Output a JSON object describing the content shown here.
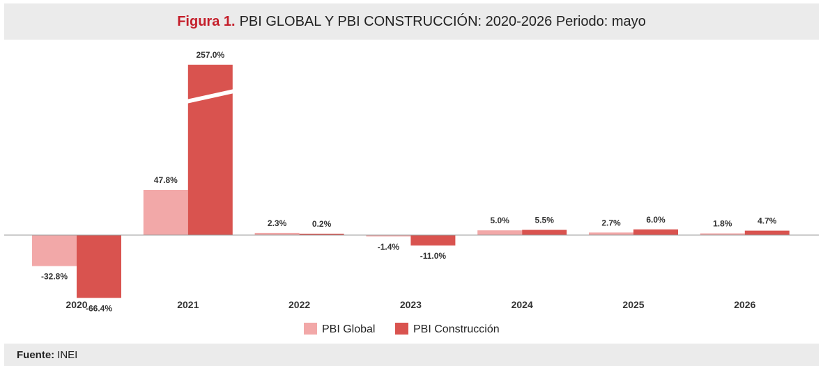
{
  "figure": {
    "label": "Figura 1.",
    "title": "PBI GLOBAL Y PBI CONSTRUCCIÓN: 2020-2026 Periodo: mayo"
  },
  "source": {
    "label": "Fuente:",
    "value": "INEI"
  },
  "colors": {
    "pbi_global": "#f2a8a8",
    "pbi_construccion": "#d9534f",
    "axis": "#9a9a9a",
    "band": "#ebebeb"
  },
  "chart_data": {
    "type": "bar",
    "categories": [
      "2020",
      "2021",
      "2022",
      "2023",
      "2024",
      "2025",
      "2026"
    ],
    "series": [
      {
        "name": "PBI Global",
        "values": [
          -32.8,
          47.8,
          2.3,
          -1.4,
          5.0,
          2.7,
          1.8
        ],
        "labels": [
          "-32.8%",
          "47.8%",
          "2.3%",
          "-1.4%",
          "5.0%",
          "2.7%",
          "1.8%"
        ],
        "color": "#f2a8a8"
      },
      {
        "name": "PBI Construcción",
        "values": [
          -66.4,
          257.0,
          0.2,
          -11.0,
          5.5,
          6.0,
          4.7
        ],
        "labels": [
          "-66.4%",
          "257.0%",
          "0.2%",
          "-11.0%",
          "5.5%",
          "6.0%",
          "4.7%"
        ],
        "color": "#d9534f"
      }
    ],
    "axis_break": {
      "category": "2021",
      "series": "PBI Construcción"
    },
    "legend_placement": "bottom-center",
    "grid": false,
    "value_format": "percent"
  }
}
